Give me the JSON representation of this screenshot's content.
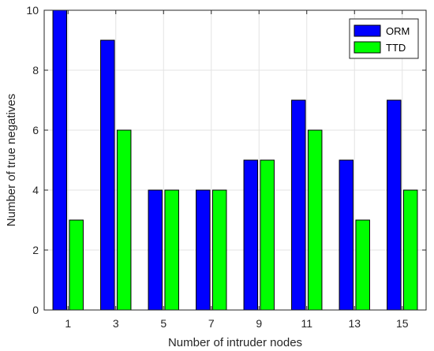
{
  "chart_data": {
    "type": "bar",
    "title": "",
    "xlabel": "Number of intruder nodes",
    "ylabel": "Number of true negatives",
    "categories": [
      "1",
      "3",
      "5",
      "7",
      "9",
      "11",
      "13",
      "15"
    ],
    "series": [
      {
        "name": "ORM",
        "color": "#0000ff",
        "values": [
          10,
          9,
          4,
          4,
          5,
          7,
          5,
          7
        ]
      },
      {
        "name": "TTD",
        "color": "#00ff00",
        "values": [
          3,
          6,
          4,
          4,
          5,
          6,
          3,
          4
        ]
      }
    ],
    "ylim": [
      0,
      10
    ],
    "yticks": [
      "0",
      "2",
      "4",
      "6",
      "8",
      "10"
    ],
    "grid": true,
    "legend_position": "top-right"
  }
}
